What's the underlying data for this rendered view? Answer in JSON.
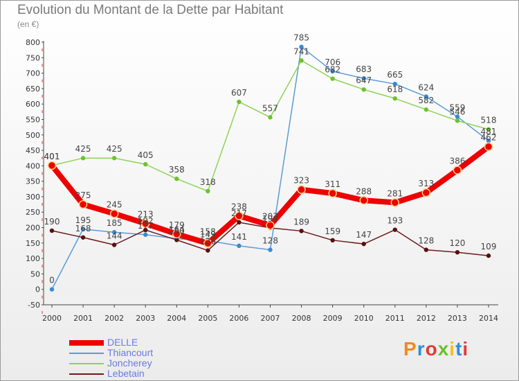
{
  "chart_data": {
    "type": "line",
    "title": "Evolution du Montant de la Dette par Habitant",
    "subtitle": "(en €)",
    "x": [
      "2000",
      "2001",
      "2002",
      "2003",
      "2004",
      "2005",
      "2006",
      "2007",
      "2008",
      "2009",
      "2010",
      "2011",
      "2012",
      "2013",
      "2014"
    ],
    "ylim": [
      -50,
      800
    ],
    "yticks": [
      -50,
      0,
      50,
      100,
      150,
      200,
      250,
      300,
      350,
      400,
      450,
      500,
      550,
      600,
      650,
      700,
      750,
      800
    ],
    "grid": false,
    "legend_position": "bottom-left",
    "series": [
      {
        "name": "DELLE",
        "color": "#ee0000",
        "values": [
          401,
          275,
          245,
          213,
          179,
          149,
          238,
          207,
          323,
          311,
          288,
          281,
          313,
          386,
          462
        ]
      },
      {
        "name": "Thiancourt",
        "color": "#5b9bd5",
        "values": [
          0,
          195,
          185,
          177,
          164,
          158,
          141,
          128,
          785,
          706,
          683,
          665,
          624,
          559,
          481
        ]
      },
      {
        "name": "Joncherey",
        "color": "#8ed354",
        "values": [
          401,
          425,
          425,
          405,
          358,
          318,
          607,
          557,
          741,
          682,
          647,
          618,
          582,
          546,
          518
        ]
      },
      {
        "name": "Lebetain",
        "color": "#6b1a1a",
        "values": [
          190,
          168,
          144,
          192,
          160,
          126,
          217,
          199,
          189,
          159,
          147,
          193,
          128,
          120,
          109
        ]
      }
    ]
  },
  "logo": {
    "text": "Proxiti"
  }
}
